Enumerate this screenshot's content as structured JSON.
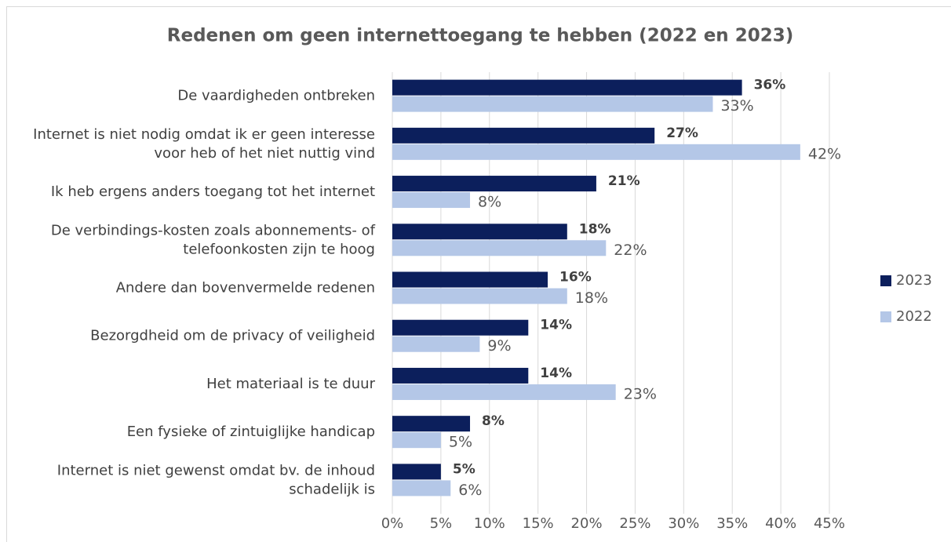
{
  "chart_data": {
    "type": "bar",
    "orientation": "horizontal",
    "title": "Redenen om geen internettoegang te hebben (2022 en 2023)",
    "categories": [
      [
        "De vaardigheden ontbreken"
      ],
      [
        "Internet is niet nodig omdat ik er geen interesse",
        "voor heb of het niet nuttig vind"
      ],
      [
        "Ik heb ergens anders toegang tot het internet"
      ],
      [
        "De verbindings-kosten zoals abonnements- of",
        "telefoonkosten zijn te hoog"
      ],
      [
        "Andere dan bovenvermelde redenen"
      ],
      [
        "Bezorgdheid om de privacy of veiligheid"
      ],
      [
        "Het materiaal is te duur"
      ],
      [
        "Een fysieke of zintuiglijke handicap"
      ],
      [
        "Internet is niet gewenst omdat bv. de inhoud",
        "schadelijk is"
      ]
    ],
    "series": [
      {
        "name": "2023",
        "color": "#0c1f5c",
        "values": [
          36,
          27,
          21,
          18,
          16,
          14,
          14,
          8,
          5
        ],
        "value_labels": [
          "36%",
          "27%",
          "21%",
          "18%",
          "16%",
          "14%",
          "14%",
          "8%",
          "5%"
        ]
      },
      {
        "name": "2022",
        "color": "#b4c7e7",
        "values": [
          33,
          42,
          8,
          22,
          18,
          9,
          23,
          5,
          6
        ],
        "value_labels": [
          "33%",
          "42%",
          "8%",
          "22%",
          "18%",
          "9%",
          "23%",
          "5%",
          "6%"
        ]
      }
    ],
    "xlim": [
      0,
      45
    ],
    "xticks": [
      {
        "value": 0,
        "label": "0%"
      },
      {
        "value": 5,
        "label": "5%"
      },
      {
        "value": 10,
        "label": "10%"
      },
      {
        "value": 15,
        "label": "15%"
      },
      {
        "value": 20,
        "label": "20%"
      },
      {
        "value": 25,
        "label": "25%"
      },
      {
        "value": 30,
        "label": "30%"
      },
      {
        "value": 35,
        "label": "35%"
      },
      {
        "value": 40,
        "label": "40%"
      },
      {
        "value": 45,
        "label": "45%"
      }
    ],
    "grid": true,
    "legend": "right"
  }
}
